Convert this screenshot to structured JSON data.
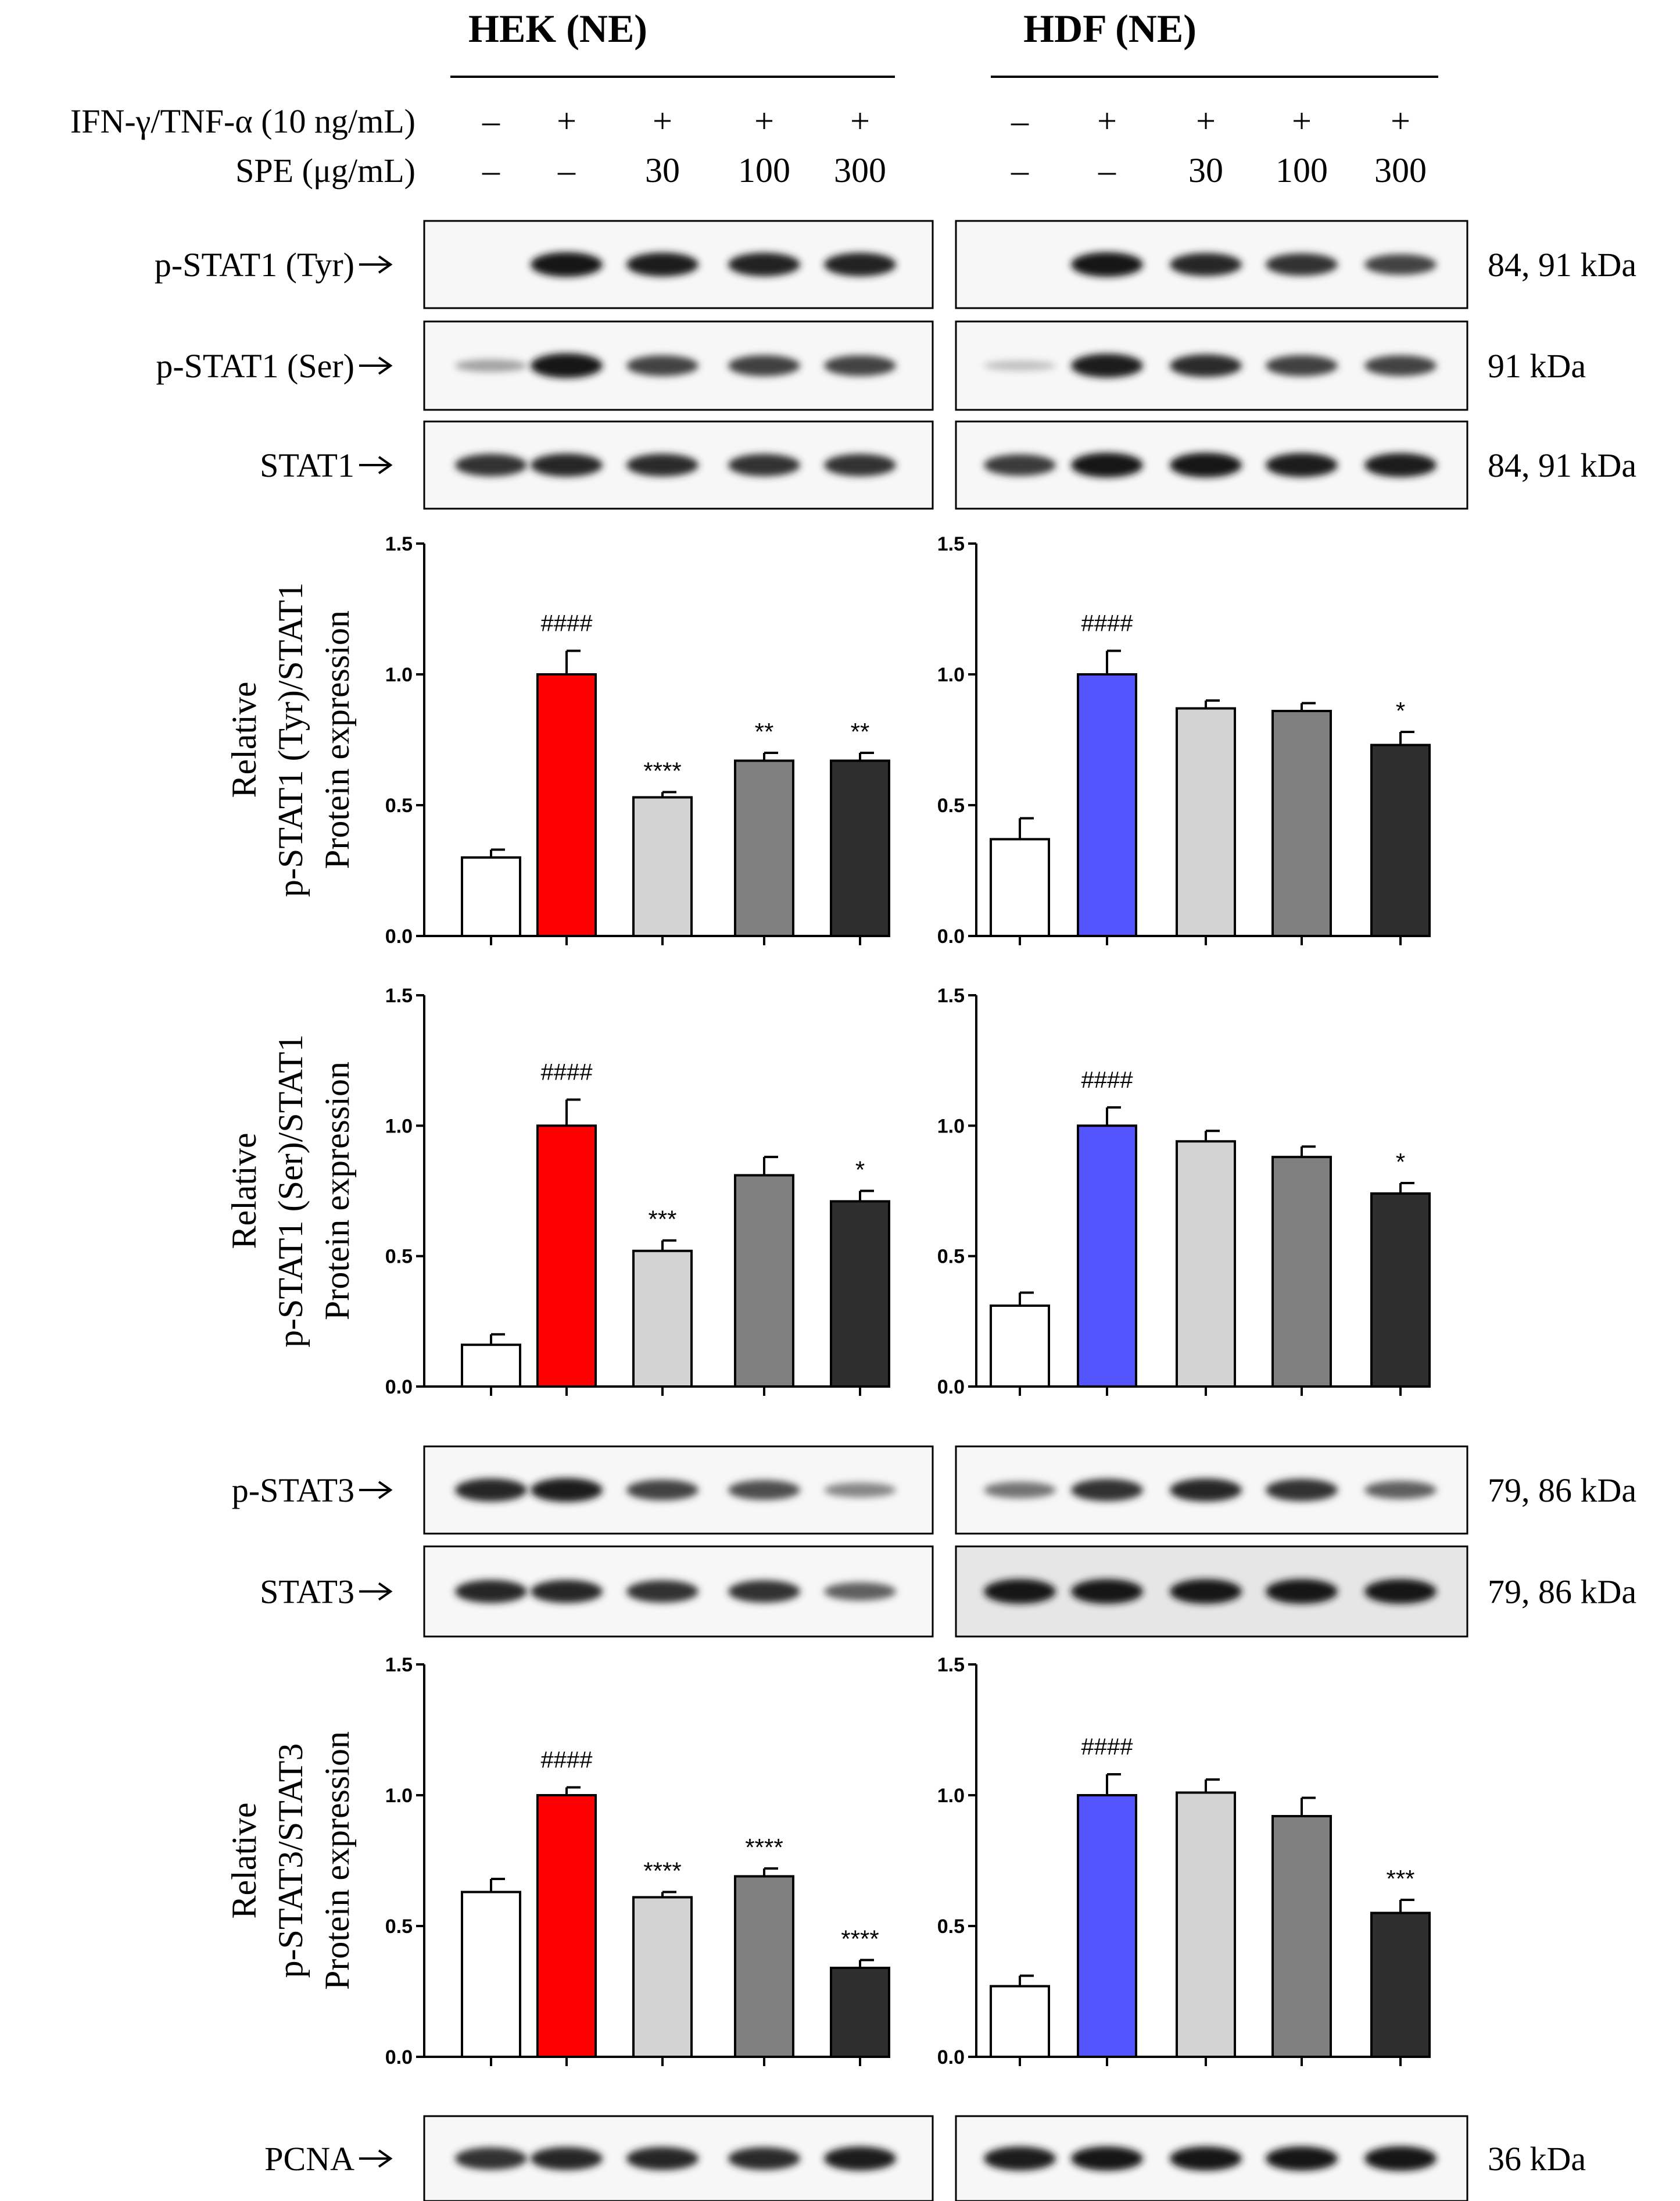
{
  "header": {
    "groups": [
      {
        "title": "HEK (NE)"
      },
      {
        "title": "HDF (NE)"
      }
    ],
    "treatment_rows": [
      {
        "label": "IFN-γ/TNF-α (10 ng/mL)",
        "values": [
          "–",
          "+",
          "+",
          "+",
          "+"
        ]
      },
      {
        "label": "SPE (μg/mL)",
        "values": [
          "–",
          "–",
          "30",
          "100",
          "300"
        ]
      }
    ]
  },
  "blot_rows": [
    {
      "label": "p-STAT1 (Tyr)",
      "kda": "84, 91 kDa"
    },
    {
      "label": "p-STAT1 (Ser)",
      "kda": "91 kDa"
    },
    {
      "label": "STAT1",
      "kda": "84, 91 kDa"
    },
    {
      "label": "p-STAT3",
      "kda": "79, 86 kDa"
    },
    {
      "label": "STAT3",
      "kda": "79, 86 kDa"
    },
    {
      "label": "PCNA",
      "kda": "36 kDa"
    }
  ],
  "colors": {
    "control": "#ffffff",
    "hek_stim": "#ff0000",
    "hdf_stim": "#5555ff",
    "spe30": "#d3d3d3",
    "spe100": "#808080",
    "spe300": "#2e2e2e",
    "axis": "#000000"
  },
  "chart_data": [
    {
      "type": "bar",
      "panel": "HEK p-STAT1 (Tyr)",
      "ylabel": [
        "Relative",
        "p-STAT1 (Tyr)/STAT1",
        "Protein expression"
      ],
      "categories": [
        "–/–",
        "+/–",
        "+/30",
        "+/100",
        "+/300"
      ],
      "values": [
        0.3,
        1.0,
        0.53,
        0.67,
        0.67
      ],
      "errors": [
        0.03,
        0.09,
        0.02,
        0.03,
        0.03
      ],
      "annotations": [
        "",
        "####",
        "****",
        "**",
        "**"
      ],
      "ylim": [
        0,
        1.5
      ],
      "yticks": [
        "0.0",
        "0.5",
        "1.0",
        "1.5"
      ]
    },
    {
      "type": "bar",
      "panel": "HDF p-STAT1 (Tyr)",
      "categories": [
        "–/–",
        "+/–",
        "+/30",
        "+/100",
        "+/300"
      ],
      "values": [
        0.37,
        1.0,
        0.87,
        0.86,
        0.73
      ],
      "errors": [
        0.08,
        0.09,
        0.03,
        0.03,
        0.05
      ],
      "annotations": [
        "",
        "####",
        "",
        "",
        "*"
      ],
      "ylim": [
        0,
        1.5
      ],
      "yticks": [
        "0.0",
        "0.5",
        "1.0",
        "1.5"
      ]
    },
    {
      "type": "bar",
      "panel": "HEK p-STAT1 (Ser)",
      "ylabel": [
        "Relative",
        "p-STAT1 (Ser)/STAT1",
        "Protein expression"
      ],
      "categories": [
        "–/–",
        "+/–",
        "+/30",
        "+/100",
        "+/300"
      ],
      "values": [
        0.16,
        1.0,
        0.52,
        0.81,
        0.71
      ],
      "errors": [
        0.04,
        0.1,
        0.04,
        0.07,
        0.04
      ],
      "annotations": [
        "",
        "####",
        "***",
        "",
        "*"
      ],
      "ylim": [
        0,
        1.5
      ],
      "yticks": [
        "0.0",
        "0.5",
        "1.0",
        "1.5"
      ]
    },
    {
      "type": "bar",
      "panel": "HDF p-STAT1 (Ser)",
      "categories": [
        "–/–",
        "+/–",
        "+/30",
        "+/100",
        "+/300"
      ],
      "values": [
        0.31,
        1.0,
        0.94,
        0.88,
        0.74
      ],
      "errors": [
        0.05,
        0.07,
        0.04,
        0.04,
        0.04
      ],
      "annotations": [
        "",
        "####",
        "",
        "",
        "*"
      ],
      "ylim": [
        0,
        1.5
      ],
      "yticks": [
        "0.0",
        "0.5",
        "1.0",
        "1.5"
      ]
    },
    {
      "type": "bar",
      "panel": "HEK p-STAT3",
      "ylabel": [
        "Relative",
        "p-STAT3/STAT3",
        "Protein expression"
      ],
      "categories": [
        "–/–",
        "+/–",
        "+/30",
        "+/100",
        "+/300"
      ],
      "values": [
        0.63,
        1.0,
        0.61,
        0.69,
        0.34
      ],
      "errors": [
        0.05,
        0.03,
        0.02,
        0.03,
        0.03
      ],
      "annotations": [
        "",
        "####",
        "****",
        "****",
        "****"
      ],
      "ylim": [
        0,
        1.5
      ],
      "yticks": [
        "0.0",
        "0.5",
        "1.0",
        "1.5"
      ]
    },
    {
      "type": "bar",
      "panel": "HDF p-STAT3",
      "categories": [
        "–/–",
        "+/–",
        "+/30",
        "+/100",
        "+/300"
      ],
      "values": [
        0.27,
        1.0,
        1.01,
        0.92,
        0.55
      ],
      "errors": [
        0.04,
        0.08,
        0.05,
        0.07,
        0.05
      ],
      "annotations": [
        "",
        "####",
        "",
        "",
        "***"
      ],
      "ylim": [
        0,
        1.5
      ],
      "yticks": [
        "0.0",
        "0.5",
        "1.0",
        "1.5"
      ]
    }
  ]
}
